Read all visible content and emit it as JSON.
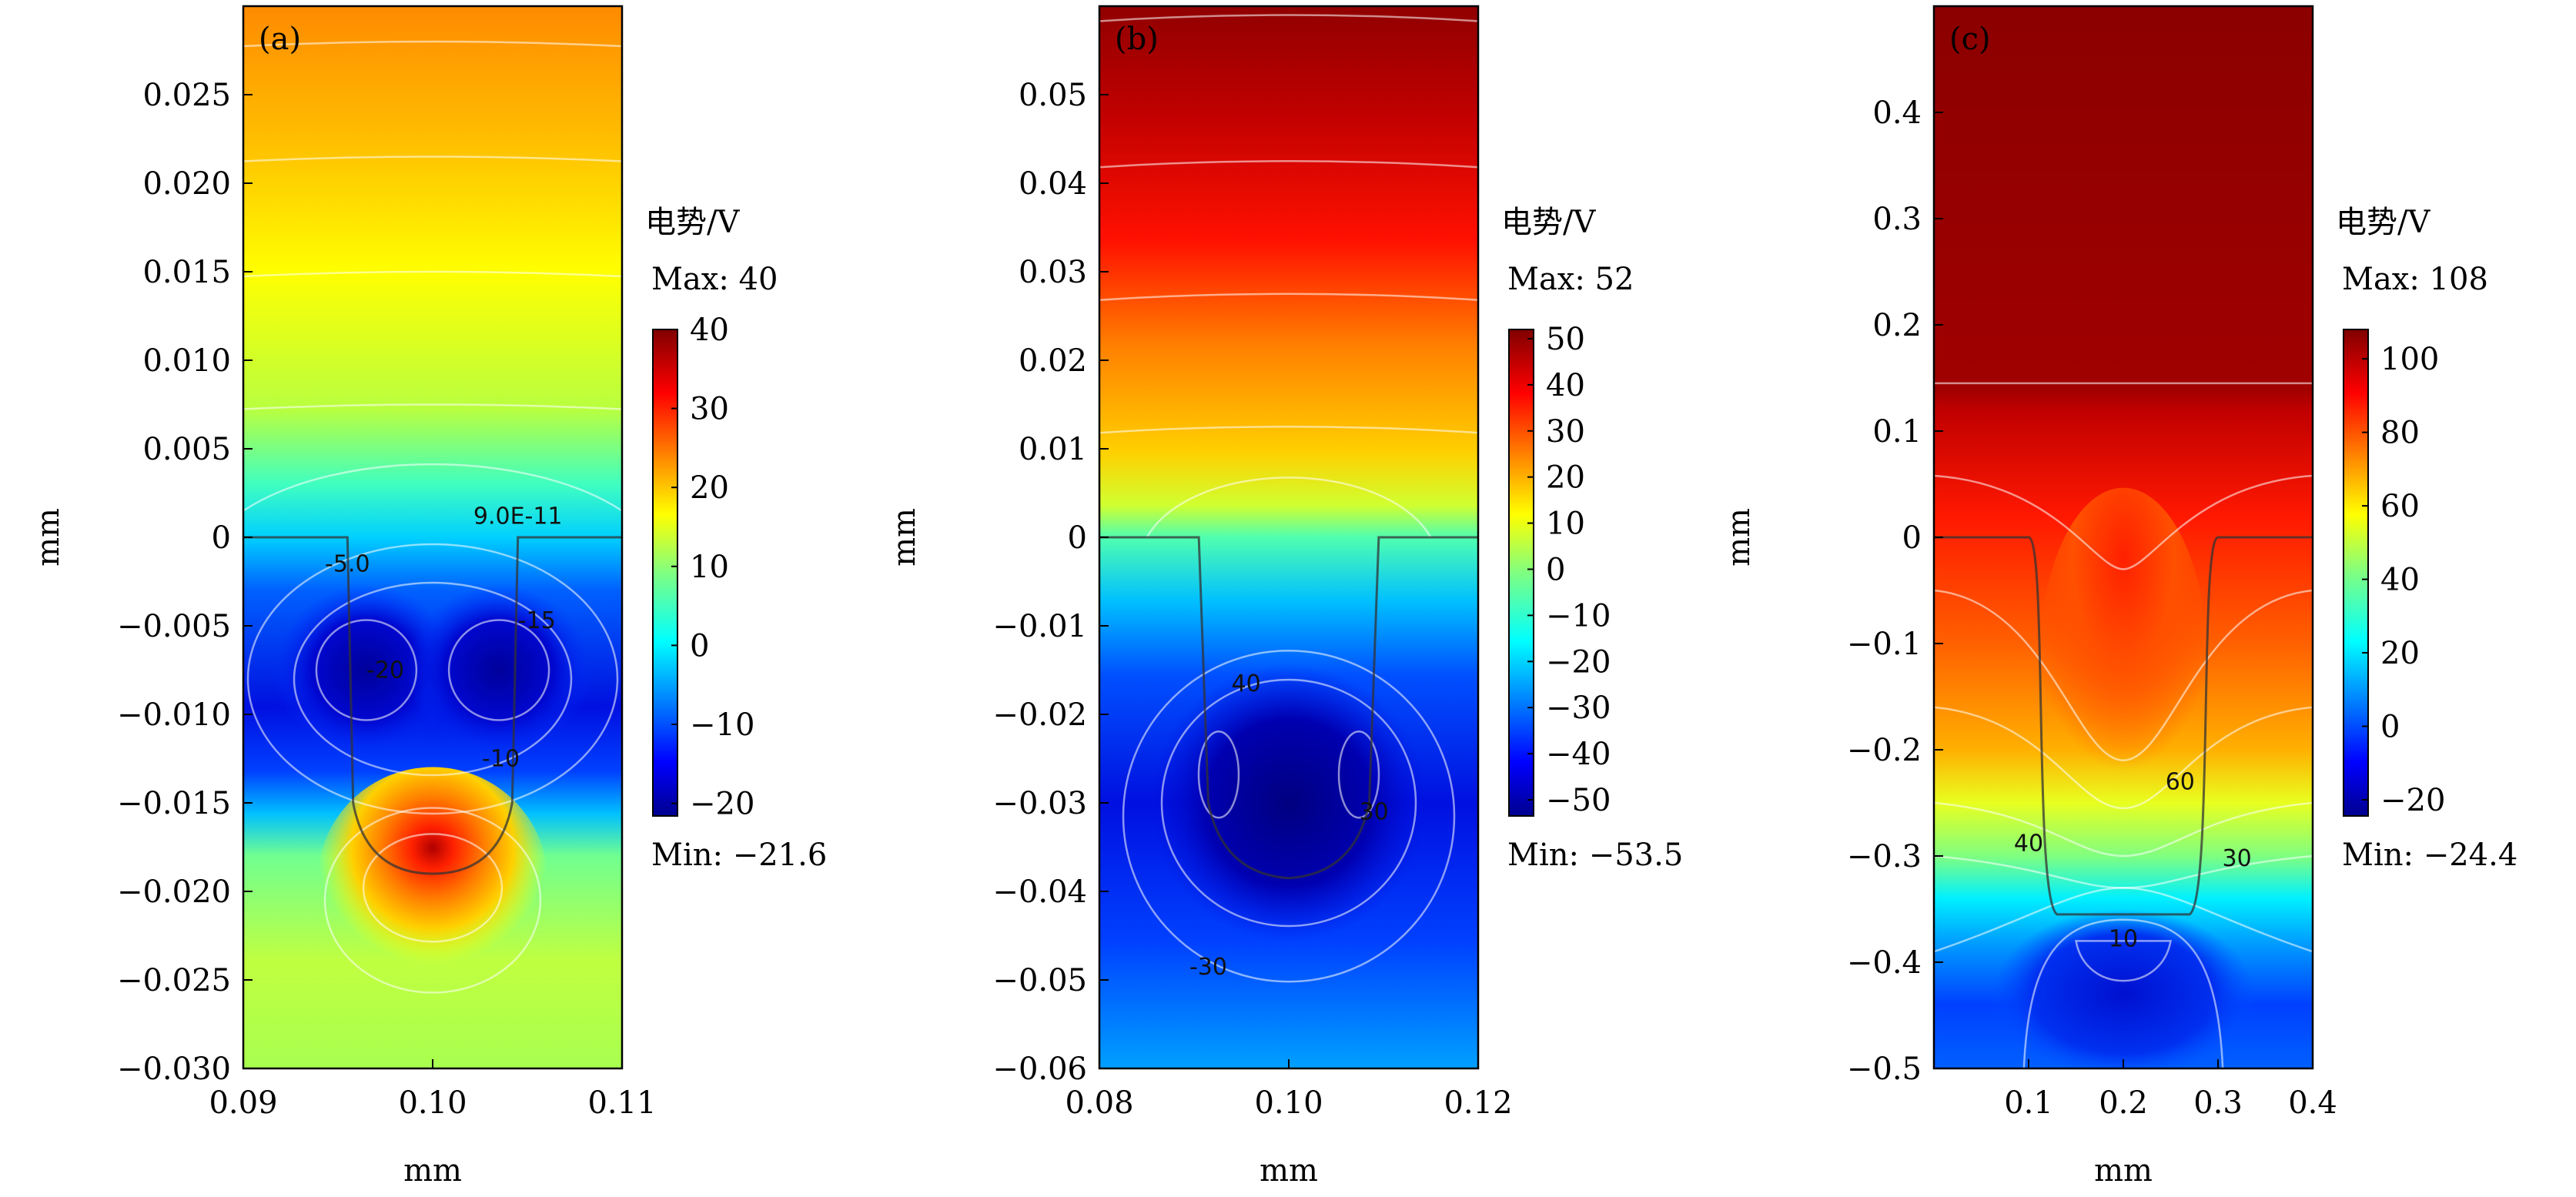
{
  "chart_data": [
    {
      "type": "heatmap",
      "panel_label": "(a)",
      "xlabel": "mm",
      "ylabel": "mm",
      "xlim": [
        0.09,
        0.11
      ],
      "ylim": [
        -0.03,
        0.03
      ],
      "x_ticks": [
        "0.09",
        "0.10",
        "0.11"
      ],
      "x_tick_values": [
        0.09,
        0.1,
        0.11
      ],
      "y_ticks": [
        "0.025",
        "0.020",
        "0.015",
        "0.010",
        "0.005",
        "0",
        "−0.005",
        "−0.010",
        "−0.015",
        "−0.020",
        "−0.025",
        "−0.030"
      ],
      "y_tick_values": [
        0.025,
        0.02,
        0.015,
        0.01,
        0.005,
        0,
        -0.005,
        -0.01,
        -0.015,
        -0.02,
        -0.025,
        -0.03
      ],
      "colorbar": {
        "title": "电势/V",
        "max_label": "Max: 40",
        "min_label": "Min: −21.6",
        "max": 40,
        "min": -21.6,
        "ticks": [
          "40",
          "30",
          "20",
          "10",
          "0",
          "−10",
          "−20"
        ],
        "tick_values": [
          40,
          30,
          20,
          10,
          0,
          -10,
          -20
        ]
      },
      "contour_labels": [
        {
          "text": "9.0E-11",
          "x": 0.1045,
          "y": 0.0012
        },
        {
          "text": "-5.0",
          "x": 0.0955,
          "y": -0.0015
        },
        {
          "text": "-15",
          "x": 0.1055,
          "y": -0.0047
        },
        {
          "text": "-20",
          "x": 0.0975,
          "y": -0.0075
        },
        {
          "text": "-10",
          "x": 0.1036,
          "y": -0.0125
        }
      ]
    },
    {
      "type": "heatmap",
      "panel_label": "(b)",
      "xlabel": "mm",
      "ylabel": "mm",
      "xlim": [
        0.08,
        0.12
      ],
      "ylim": [
        -0.06,
        0.06
      ],
      "x_ticks": [
        "0.08",
        "0.10",
        "0.12"
      ],
      "x_tick_values": [
        0.08,
        0.1,
        0.12
      ],
      "y_ticks": [
        "0.05",
        "0.04",
        "0.03",
        "0.02",
        "0.01",
        "0",
        "−0.01",
        "−0.02",
        "−0.03",
        "−0.04",
        "−0.05",
        "−0.06"
      ],
      "y_tick_values": [
        0.05,
        0.04,
        0.03,
        0.02,
        0.01,
        0,
        -0.01,
        -0.02,
        -0.03,
        -0.04,
        -0.05,
        -0.06
      ],
      "colorbar": {
        "title": "电势/V",
        "max_label": "Max: 52",
        "min_label": "Min: −53.5",
        "max": 52,
        "min": -53.5,
        "ticks": [
          "50",
          "40",
          "30",
          "20",
          "10",
          "0",
          "−10",
          "−20",
          "−30",
          "−40",
          "−50"
        ],
        "tick_values": [
          50,
          40,
          30,
          20,
          10,
          0,
          -10,
          -20,
          -30,
          -40,
          -50
        ]
      },
      "contour_labels": [
        {
          "text": "40",
          "x": 0.0955,
          "y": -0.0165
        },
        {
          "text": "30",
          "x": 0.109,
          "y": -0.031
        },
        {
          "text": "-30",
          "x": 0.0915,
          "y": -0.0485
        }
      ]
    },
    {
      "type": "heatmap",
      "panel_label": "(c)",
      "xlabel": "mm",
      "ylabel": "mm",
      "xlim": [
        0.0,
        0.4
      ],
      "ylim": [
        -0.5,
        0.5
      ],
      "x_ticks": [
        "0.1",
        "0.2",
        "0.3",
        "0.4"
      ],
      "x_tick_values": [
        0.1,
        0.2,
        0.3,
        0.4
      ],
      "y_ticks": [
        "0.4",
        "0.3",
        "0.2",
        "0.1",
        "0",
        "−0.1",
        "−0.2",
        "−0.3",
        "−0.4",
        "−0.5"
      ],
      "y_tick_values": [
        0.4,
        0.3,
        0.2,
        0.1,
        0,
        -0.1,
        -0.2,
        -0.3,
        -0.4,
        -0.5
      ],
      "colorbar": {
        "title": "电势/V",
        "max_label": "Max: 108",
        "min_label": "Min: −24.4",
        "max": 108,
        "min": -24.4,
        "ticks": [
          "100",
          "80",
          "60",
          "40",
          "20",
          "0",
          "−20"
        ],
        "tick_values": [
          100,
          80,
          60,
          40,
          20,
          0,
          -20
        ]
      },
      "contour_labels": [
        {
          "text": "60",
          "x": 0.26,
          "y": -0.23
        },
        {
          "text": "40",
          "x": 0.1,
          "y": -0.288
        },
        {
          "text": "30",
          "x": 0.32,
          "y": -0.302
        },
        {
          "text": "10",
          "x": 0.2,
          "y": -0.378
        }
      ]
    }
  ]
}
